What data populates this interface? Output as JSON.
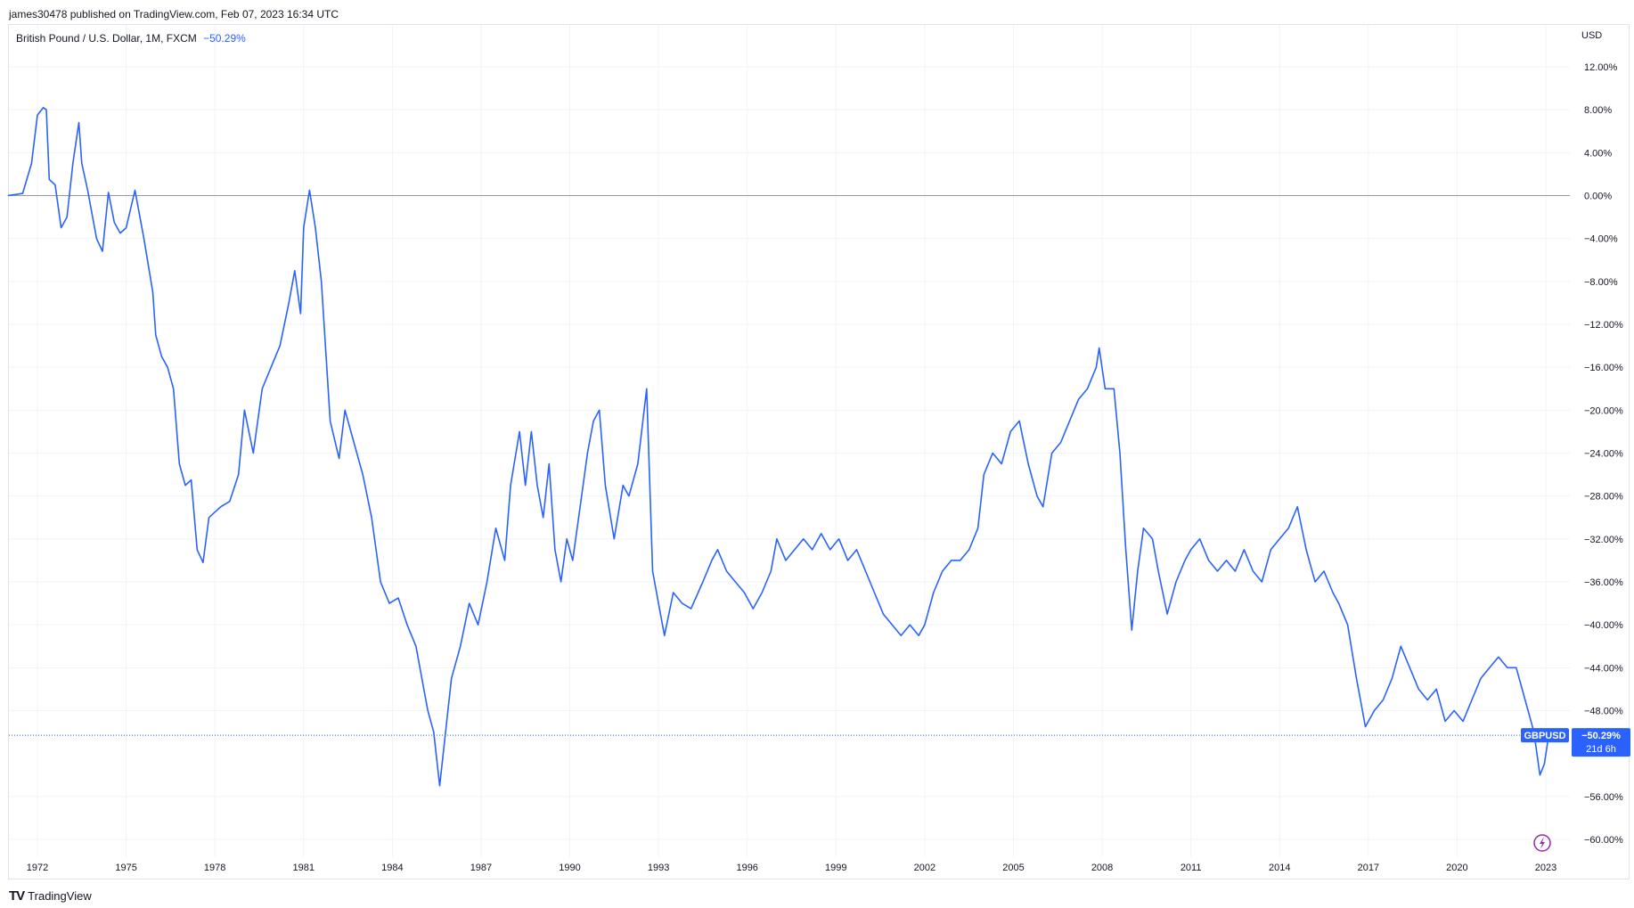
{
  "header": {
    "published_text": "james30478 published on TradingView.com, Feb 07, 2023 16:34 UTC"
  },
  "legend": {
    "symbol_text": "British Pound / U.S. Dollar, 1M, FXCM",
    "change_text": "−50.29%"
  },
  "price_axis": {
    "currency": "USD"
  },
  "badge": {
    "symbol": "GBPUSD",
    "value": "−50.29%",
    "countdown": "21d 6h"
  },
  "footer": {
    "brand": "TradingView"
  },
  "colors": {
    "line": "#2962ff",
    "grid": "#f0f3fa",
    "zero": "#9598a1",
    "text": "#131722"
  },
  "chart_data": {
    "type": "line",
    "title": "British Pound / U.S. Dollar, 1M, FXCM",
    "ylabel": "USD",
    "y_unit": "% change",
    "ylim": [
      -62,
      14
    ],
    "xlim": [
      1971.0,
      2024.5
    ],
    "grid": true,
    "y_ticks": [
      12,
      8,
      4,
      0,
      -4,
      -8,
      -12,
      -16,
      -20,
      -24,
      -28,
      -32,
      -36,
      -40,
      -44,
      -48,
      -56,
      -60
    ],
    "x_ticks": [
      "1972",
      "1975",
      "1978",
      "1981",
      "1984",
      "1987",
      "1990",
      "1993",
      "1996",
      "1999",
      "2002",
      "2005",
      "2008",
      "2011",
      "2014",
      "2017",
      "2020",
      "2023"
    ],
    "last_value": -50.29,
    "series": [
      {
        "name": "GBPUSD",
        "points": [
          [
            1971.0,
            0
          ],
          [
            1971.5,
            0.2
          ],
          [
            1971.8,
            3
          ],
          [
            1972.0,
            7.5
          ],
          [
            1972.2,
            8.2
          ],
          [
            1972.3,
            8
          ],
          [
            1972.4,
            1.5
          ],
          [
            1972.6,
            1
          ],
          [
            1972.8,
            -3
          ],
          [
            1973.0,
            -2
          ],
          [
            1973.2,
            3
          ],
          [
            1973.4,
            6.8
          ],
          [
            1973.5,
            3
          ],
          [
            1973.7,
            0.5
          ],
          [
            1974.0,
            -4
          ],
          [
            1974.2,
            -5.2
          ],
          [
            1974.4,
            0.3
          ],
          [
            1974.6,
            -2.5
          ],
          [
            1974.8,
            -3.5
          ],
          [
            1975.0,
            -3
          ],
          [
            1975.3,
            0.5
          ],
          [
            1975.6,
            -4
          ],
          [
            1975.9,
            -9
          ],
          [
            1976.0,
            -13
          ],
          [
            1976.2,
            -15
          ],
          [
            1976.4,
            -16
          ],
          [
            1976.6,
            -18
          ],
          [
            1976.8,
            -25
          ],
          [
            1977.0,
            -27
          ],
          [
            1977.2,
            -26.5
          ],
          [
            1977.4,
            -33
          ],
          [
            1977.6,
            -34.2
          ],
          [
            1977.8,
            -30
          ],
          [
            1978.2,
            -29
          ],
          [
            1978.5,
            -28.5
          ],
          [
            1978.8,
            -26
          ],
          [
            1979.0,
            -20
          ],
          [
            1979.3,
            -24
          ],
          [
            1979.6,
            -18
          ],
          [
            1979.9,
            -16
          ],
          [
            1980.2,
            -14
          ],
          [
            1980.5,
            -10
          ],
          [
            1980.7,
            -7
          ],
          [
            1980.9,
            -11
          ],
          [
            1981.0,
            -3
          ],
          [
            1981.2,
            0.5
          ],
          [
            1981.4,
            -3
          ],
          [
            1981.6,
            -8
          ],
          [
            1981.9,
            -21
          ],
          [
            1982.2,
            -24.5
          ],
          [
            1982.4,
            -20
          ],
          [
            1982.7,
            -23
          ],
          [
            1983.0,
            -26
          ],
          [
            1983.3,
            -30
          ],
          [
            1983.6,
            -36
          ],
          [
            1983.9,
            -38
          ],
          [
            1984.2,
            -37.5
          ],
          [
            1984.5,
            -40
          ],
          [
            1984.8,
            -42
          ],
          [
            1985.0,
            -45
          ],
          [
            1985.2,
            -48
          ],
          [
            1985.4,
            -50
          ],
          [
            1985.6,
            -55
          ],
          [
            1985.8,
            -50
          ],
          [
            1986.0,
            -45
          ],
          [
            1986.3,
            -42
          ],
          [
            1986.6,
            -38
          ],
          [
            1986.9,
            -40
          ],
          [
            1987.2,
            -36
          ],
          [
            1987.5,
            -31
          ],
          [
            1987.8,
            -34
          ],
          [
            1988.0,
            -27
          ],
          [
            1988.3,
            -22
          ],
          [
            1988.5,
            -27
          ],
          [
            1988.7,
            -22
          ],
          [
            1988.9,
            -27
          ],
          [
            1989.1,
            -30
          ],
          [
            1989.3,
            -25
          ],
          [
            1989.5,
            -33
          ],
          [
            1989.7,
            -36
          ],
          [
            1989.9,
            -32
          ],
          [
            1990.1,
            -34
          ],
          [
            1990.4,
            -28
          ],
          [
            1990.6,
            -24
          ],
          [
            1990.8,
            -21
          ],
          [
            1991.0,
            -20
          ],
          [
            1991.2,
            -27
          ],
          [
            1991.5,
            -32
          ],
          [
            1991.8,
            -27
          ],
          [
            1992.0,
            -28
          ],
          [
            1992.3,
            -25
          ],
          [
            1992.6,
            -18
          ],
          [
            1992.8,
            -35
          ],
          [
            1993.0,
            -38
          ],
          [
            1993.2,
            -41
          ],
          [
            1993.5,
            -37
          ],
          [
            1993.8,
            -38
          ],
          [
            1994.1,
            -38.5
          ],
          [
            1994.5,
            -36
          ],
          [
            1994.8,
            -34
          ],
          [
            1995.0,
            -33
          ],
          [
            1995.3,
            -35
          ],
          [
            1995.6,
            -36
          ],
          [
            1995.9,
            -37
          ],
          [
            1996.2,
            -38.5
          ],
          [
            1996.5,
            -37
          ],
          [
            1996.8,
            -35
          ],
          [
            1997.0,
            -32
          ],
          [
            1997.3,
            -34
          ],
          [
            1997.6,
            -33
          ],
          [
            1997.9,
            -32
          ],
          [
            1998.2,
            -33
          ],
          [
            1998.5,
            -31.5
          ],
          [
            1998.8,
            -33
          ],
          [
            1999.1,
            -32
          ],
          [
            1999.4,
            -34
          ],
          [
            1999.7,
            -33
          ],
          [
            2000.0,
            -35
          ],
          [
            2000.3,
            -37
          ],
          [
            2000.6,
            -39
          ],
          [
            2000.9,
            -40
          ],
          [
            2001.2,
            -41
          ],
          [
            2001.5,
            -40
          ],
          [
            2001.8,
            -41
          ],
          [
            2002.0,
            -40
          ],
          [
            2002.3,
            -37
          ],
          [
            2002.6,
            -35
          ],
          [
            2002.9,
            -34
          ],
          [
            2003.2,
            -34
          ],
          [
            2003.5,
            -33
          ],
          [
            2003.8,
            -31
          ],
          [
            2004.0,
            -26
          ],
          [
            2004.3,
            -24
          ],
          [
            2004.6,
            -25
          ],
          [
            2004.9,
            -22
          ],
          [
            2005.2,
            -21
          ],
          [
            2005.5,
            -25
          ],
          [
            2005.8,
            -28
          ],
          [
            2006.0,
            -29
          ],
          [
            2006.3,
            -24
          ],
          [
            2006.6,
            -23
          ],
          [
            2006.9,
            -21
          ],
          [
            2007.2,
            -19
          ],
          [
            2007.5,
            -18
          ],
          [
            2007.8,
            -16
          ],
          [
            2007.9,
            -14.2
          ],
          [
            2008.1,
            -18
          ],
          [
            2008.4,
            -18
          ],
          [
            2008.6,
            -24
          ],
          [
            2008.8,
            -33
          ],
          [
            2009.0,
            -40.5
          ],
          [
            2009.2,
            -35
          ],
          [
            2009.4,
            -31
          ],
          [
            2009.7,
            -32
          ],
          [
            2009.9,
            -35
          ],
          [
            2010.2,
            -39
          ],
          [
            2010.5,
            -36
          ],
          [
            2010.8,
            -34
          ],
          [
            2011.0,
            -33
          ],
          [
            2011.3,
            -32
          ],
          [
            2011.6,
            -34
          ],
          [
            2011.9,
            -35
          ],
          [
            2012.2,
            -34
          ],
          [
            2012.5,
            -35
          ],
          [
            2012.8,
            -33
          ],
          [
            2013.1,
            -35
          ],
          [
            2013.4,
            -36
          ],
          [
            2013.7,
            -33
          ],
          [
            2014.0,
            -32
          ],
          [
            2014.3,
            -31
          ],
          [
            2014.6,
            -29
          ],
          [
            2014.9,
            -33
          ],
          [
            2015.2,
            -36
          ],
          [
            2015.5,
            -35
          ],
          [
            2015.8,
            -37
          ],
          [
            2016.0,
            -38
          ],
          [
            2016.3,
            -40
          ],
          [
            2016.6,
            -45
          ],
          [
            2016.8,
            -48
          ],
          [
            2016.9,
            -49.5
          ],
          [
            2017.2,
            -48
          ],
          [
            2017.5,
            -47
          ],
          [
            2017.8,
            -45
          ],
          [
            2018.1,
            -42
          ],
          [
            2018.4,
            -44
          ],
          [
            2018.7,
            -46
          ],
          [
            2019.0,
            -47
          ],
          [
            2019.3,
            -46
          ],
          [
            2019.6,
            -49
          ],
          [
            2019.9,
            -48
          ],
          [
            2020.2,
            -49
          ],
          [
            2020.5,
            -47
          ],
          [
            2020.8,
            -45
          ],
          [
            2021.1,
            -44
          ],
          [
            2021.4,
            -43
          ],
          [
            2021.7,
            -44
          ],
          [
            2022.0,
            -44
          ],
          [
            2022.3,
            -47
          ],
          [
            2022.6,
            -50
          ],
          [
            2022.8,
            -54
          ],
          [
            2022.95,
            -53
          ],
          [
            2023.1,
            -50.29
          ]
        ]
      }
    ]
  }
}
